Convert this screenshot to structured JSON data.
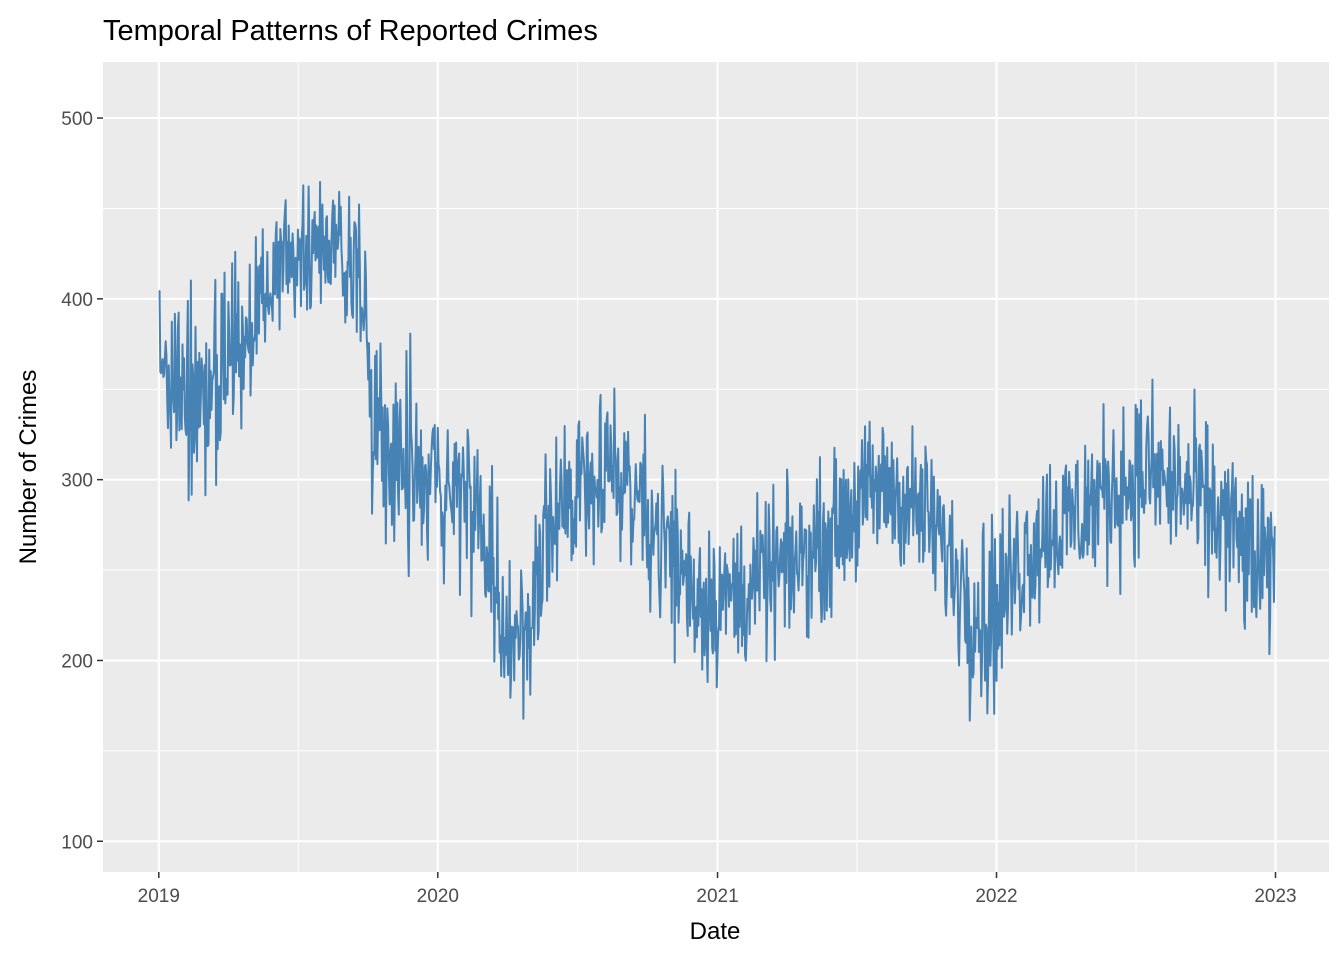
{
  "chart_data": {
    "type": "line",
    "title": "Temporal Patterns of Reported Crimes",
    "xlabel": "Date",
    "ylabel": "Number of Crimes",
    "x_ticks": [
      {
        "date": "2019-01-01",
        "label": "2019"
      },
      {
        "date": "2020-01-01",
        "label": "2020"
      },
      {
        "date": "2021-01-01",
        "label": "2021"
      },
      {
        "date": "2022-01-01",
        "label": "2022"
      },
      {
        "date": "2023-01-01",
        "label": "2023"
      }
    ],
    "y_ticks": [
      100,
      200,
      300,
      400,
      500
    ],
    "xlim": [
      "2018-10-20",
      "2023-03-12"
    ],
    "ylim": [
      83,
      531
    ],
    "grid": true,
    "legend": "none",
    "line_color": "#4682B4",
    "panel_color": "#EBEBEB",
    "grid_color": "#FFFFFF",
    "series": [
      {
        "x": [
          "2019-01-01",
          "2019-01-15",
          "2019-02-01",
          "2019-02-15",
          "2019-03-01",
          "2019-03-15",
          "2019-04-01",
          "2019-04-15",
          "2019-05-01",
          "2019-05-15",
          "2019-06-01",
          "2019-06-15",
          "2019-07-01",
          "2019-07-15",
          "2019-08-01",
          "2019-08-15",
          "2019-09-01",
          "2019-09-15",
          "2019-10-01",
          "2019-10-15",
          "2019-11-01",
          "2019-11-15",
          "2019-12-01",
          "2019-12-15",
          "2020-01-01",
          "2020-01-15",
          "2020-02-01",
          "2020-02-15",
          "2020-03-01",
          "2020-03-15",
          "2020-04-01",
          "2020-04-15",
          "2020-05-01",
          "2020-05-15",
          "2020-06-01",
          "2020-06-15",
          "2020-07-01",
          "2020-07-15",
          "2020-08-01",
          "2020-08-15",
          "2020-09-01",
          "2020-09-15",
          "2020-10-01",
          "2020-10-15",
          "2020-11-01",
          "2020-11-15",
          "2020-12-01",
          "2020-12-15",
          "2021-01-01",
          "2021-01-15",
          "2021-02-01",
          "2021-02-15",
          "2021-03-01",
          "2021-03-15",
          "2021-04-01",
          "2021-04-15",
          "2021-05-01",
          "2021-05-15",
          "2021-06-01",
          "2021-06-15",
          "2021-07-01",
          "2021-07-15",
          "2021-08-01",
          "2021-08-15",
          "2021-09-01",
          "2021-09-15",
          "2021-10-01",
          "2021-10-15",
          "2021-11-01",
          "2021-11-15",
          "2021-12-01",
          "2021-12-15",
          "2022-01-01",
          "2022-01-15",
          "2022-02-01",
          "2022-02-15",
          "2022-03-01",
          "2022-03-15",
          "2022-04-01",
          "2022-04-15",
          "2022-05-01",
          "2022-05-15",
          "2022-06-01",
          "2022-06-15",
          "2022-07-01",
          "2022-07-15",
          "2022-08-01",
          "2022-08-15",
          "2022-09-01",
          "2022-09-15",
          "2022-10-01",
          "2022-10-15",
          "2022-11-01",
          "2022-11-15",
          "2022-12-01",
          "2022-12-15",
          "2022-12-31"
        ],
        "y": [
          360,
          365,
          355,
          350,
          345,
          355,
          370,
          380,
          385,
          400,
          410,
          420,
          425,
          430,
          435,
          430,
          425,
          420,
          370,
          340,
          315,
          300,
          295,
          300,
          295,
          300,
          290,
          285,
          275,
          225,
          210,
          215,
          225,
          250,
          270,
          285,
          300,
          305,
          310,
          305,
          300,
          295,
          285,
          270,
          260,
          250,
          240,
          235,
          235,
          235,
          238,
          240,
          245,
          248,
          250,
          255,
          260,
          265,
          270,
          280,
          285,
          290,
          295,
          295,
          290,
          285,
          280,
          270,
          255,
          245,
          235,
          225,
          230,
          240,
          255,
          265,
          270,
          275,
          275,
          280,
          285,
          290,
          295,
          300,
          300,
          305,
          300,
          298,
          295,
          290,
          285,
          280,
          275,
          265,
          255,
          250,
          245
        ],
        "y_lower": [
          320,
          300,
          295,
          290,
          300,
          305,
          320,
          335,
          350,
          370,
          380,
          390,
          395,
          400,
          405,
          400,
          390,
          380,
          310,
          290,
          265,
          230,
          230,
          250,
          250,
          260,
          250,
          245,
          235,
          170,
          165,
          180,
          185,
          210,
          230,
          245,
          260,
          265,
          270,
          265,
          260,
          255,
          240,
          225,
          205,
          200,
          195,
          190,
          195,
          195,
          200,
          205,
          205,
          210,
          215,
          220,
          225,
          230,
          235,
          245,
          250,
          255,
          260,
          260,
          255,
          250,
          245,
          235,
          215,
          200,
          180,
          170,
          175,
          200,
          215,
          225,
          230,
          235,
          235,
          240,
          245,
          250,
          255,
          260,
          260,
          265,
          265,
          260,
          255,
          250,
          245,
          240,
          230,
          220,
          210,
          200,
          210
        ],
        "y_upper": [
          400,
          410,
          400,
          395,
          390,
          405,
          420,
          425,
          425,
          440,
          450,
          460,
          465,
          470,
          475,
          470,
          465,
          460,
          430,
          390,
          360,
          350,
          340,
          345,
          340,
          345,
          335,
          330,
          320,
          280,
          255,
          260,
          270,
          300,
          315,
          330,
          340,
          345,
          350,
          345,
          340,
          335,
          330,
          315,
          305,
          295,
          285,
          280,
          275,
          275,
          278,
          280,
          285,
          290,
          290,
          295,
          300,
          305,
          310,
          320,
          325,
          330,
          335,
          335,
          330,
          325,
          320,
          310,
          295,
          290,
          285,
          270,
          280,
          285,
          300,
          310,
          315,
          320,
          320,
          325,
          330,
          335,
          340,
          345,
          345,
          350,
          345,
          340,
          340,
          335,
          330,
          325,
          320,
          310,
          300,
          295,
          290
        ]
      }
    ]
  }
}
